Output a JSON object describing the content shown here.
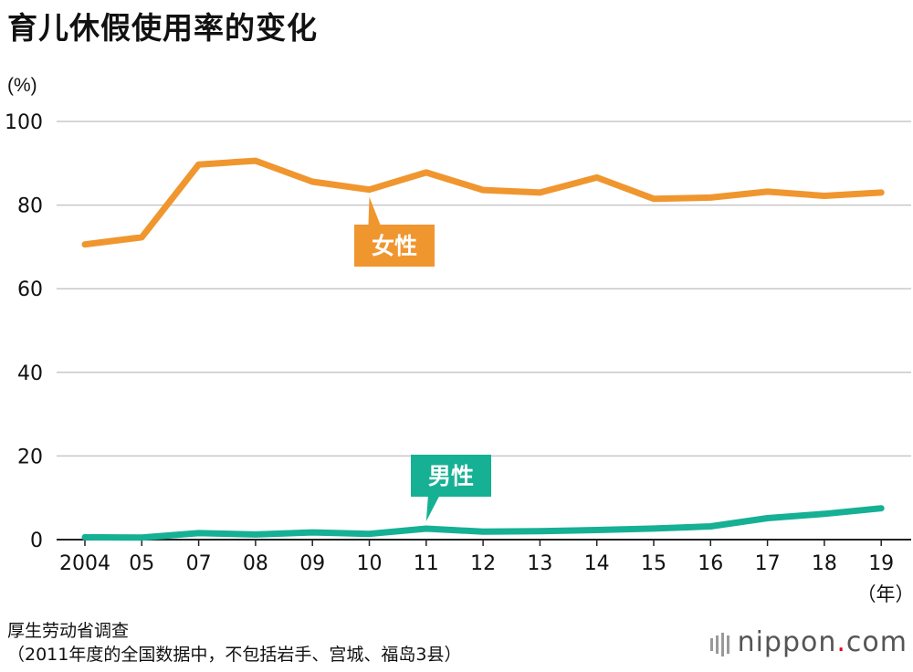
{
  "chart_data": {
    "type": "line",
    "title": "育儿休假使用率的变化",
    "ylabel": "(%)",
    "xlabel": "（年）",
    "ylim": [
      0,
      100
    ],
    "yticks": [
      0,
      20,
      40,
      60,
      80,
      100
    ],
    "grid": true,
    "categories": [
      "2004",
      "05",
      "07",
      "08",
      "09",
      "10",
      "11",
      "12",
      "13",
      "14",
      "15",
      "16",
      "17",
      "18",
      "19"
    ],
    "series": [
      {
        "name": "女性",
        "color": "#f0962f",
        "values": [
          70.6,
          72.3,
          89.7,
          90.6,
          85.6,
          83.7,
          87.8,
          83.6,
          83.0,
          86.6,
          81.5,
          81.8,
          83.2,
          82.2,
          83.0
        ]
      },
      {
        "name": "男性",
        "color": "#16b094",
        "values": [
          0.56,
          0.5,
          1.56,
          1.23,
          1.72,
          1.38,
          2.63,
          1.89,
          2.03,
          2.3,
          2.65,
          3.16,
          5.14,
          6.16,
          7.48
        ]
      }
    ]
  },
  "source": {
    "line1": "厚生劳动省调查",
    "line2": "（2011年度的全国数据中，不包括岩手、宫城、福岛3县）"
  },
  "logo": {
    "name": "nippon",
    "dot": ".",
    "suffix": "com"
  }
}
